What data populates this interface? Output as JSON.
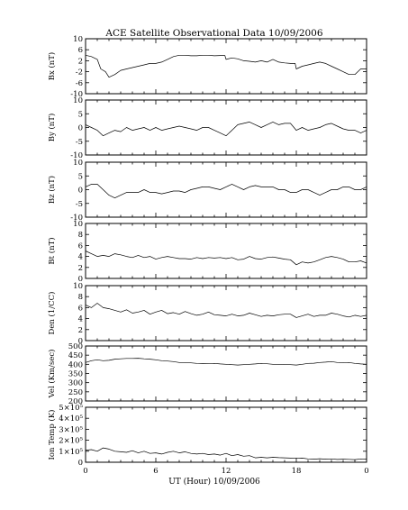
{
  "chart_data": {
    "type": "line",
    "title": "ACE Satellite Observational Data   10/09/2006",
    "xlabel": "UT (Hour)   10/09/2006",
    "x_ticks": [
      "0",
      "6",
      "12",
      "18",
      "0"
    ],
    "xlim": [
      0,
      24
    ],
    "panels": [
      {
        "ylabel": "Bx (nT)",
        "ylim": [
          -10,
          10
        ],
        "y_ticks": [
          "10",
          "6",
          "2",
          "-2",
          "-6",
          "-10"
        ],
        "series": [
          {
            "x": [
              0,
              0.5,
              1,
              1.3,
              1.7,
              2,
              2.5,
              3,
              3.5,
              4,
              4.5,
              5,
              5.5,
              6,
              6.5,
              7,
              7.5,
              8,
              8.5,
              9,
              9.5,
              10,
              10.5,
              11,
              11.5,
              11.9,
              12,
              12.5,
              13,
              13.5,
              14,
              14.5,
              15,
              15.5,
              16,
              16.5,
              17,
              17.5,
              17.9,
              18,
              18.5,
              19,
              19.5,
              20,
              20.5,
              21,
              21.5,
              22,
              22.5,
              23,
              23.5,
              24
            ],
            "y": [
              4,
              3.5,
              2.5,
              -1,
              -2,
              -4,
              -3,
              -1.5,
              -1,
              -0.5,
              0,
              0.5,
              1,
              1,
              1.5,
              2.5,
              3.5,
              4,
              4,
              3.8,
              3.8,
              4,
              4,
              3.8,
              3.9,
              3.9,
              2.5,
              3,
              2.7,
              2,
              1.8,
              1.5,
              2,
              1.5,
              2.5,
              1.5,
              1.2,
              1,
              1,
              -1,
              0,
              0.5,
              1,
              1.5,
              1,
              0,
              -1,
              -2,
              -3,
              -3,
              -1,
              -1
            ]
          }
        ]
      },
      {
        "ylabel": "By (nT)",
        "ylim": [
          -10,
          10
        ],
        "y_ticks": [
          "10",
          "5",
          "0",
          "-5",
          "-10"
        ],
        "series": [
          {
            "x": [
              0,
              0.5,
              1,
              1.5,
              2,
              2.5,
              3,
              3.5,
              4,
              4.5,
              5,
              5.5,
              6,
              6.5,
              7,
              7.5,
              8,
              8.5,
              9,
              9.5,
              10,
              10.5,
              11,
              11.5,
              12,
              12.5,
              13,
              13.5,
              14,
              14.5,
              15,
              15.5,
              16,
              16.5,
              17,
              17.5,
              18,
              18.5,
              19,
              19.5,
              20,
              20.5,
              21,
              21.5,
              22,
              22.5,
              23,
              23.5,
              24
            ],
            "y": [
              1,
              0,
              -1,
              -3,
              -2,
              -1,
              -1.5,
              0,
              -1,
              -0.5,
              0,
              -1,
              0,
              -1,
              -0.5,
              0,
              0.5,
              0,
              -0.5,
              -1,
              0,
              0,
              -1,
              -2,
              -3,
              -1,
              1,
              1.5,
              2,
              1,
              0,
              1,
              2,
              1,
              1.5,
              1.5,
              -1,
              0,
              -1,
              -0.5,
              0,
              1,
              1.5,
              0.5,
              -0.5,
              -1,
              -1,
              -2,
              -1
            ]
          }
        ]
      },
      {
        "ylabel": "Bz (nT)",
        "ylim": [
          -10,
          10
        ],
        "y_ticks": [
          "10",
          "5",
          "0",
          "-5",
          "-10"
        ],
        "series": [
          {
            "x": [
              0,
              0.5,
              1,
              1.5,
              2,
              2.5,
              3,
              3.5,
              4,
              4.5,
              5,
              5.5,
              6,
              6.5,
              7,
              7.5,
              8,
              8.5,
              9,
              9.5,
              10,
              10.5,
              11,
              11.5,
              12,
              12.5,
              13,
              13.5,
              14,
              14.5,
              15,
              15.5,
              16,
              16.5,
              17,
              17.5,
              18,
              18.5,
              19,
              19.5,
              20,
              20.5,
              21,
              21.5,
              22,
              22.5,
              23,
              23.5,
              24
            ],
            "y": [
              1,
              2,
              2,
              0,
              -2,
              -3,
              -2,
              -1,
              -1,
              -1,
              0,
              -1,
              -1,
              -1.5,
              -1,
              -0.5,
              -0.5,
              -1,
              0,
              0.5,
              1,
              1,
              0.5,
              0,
              1,
              2,
              1,
              0,
              1,
              1.5,
              1,
              1,
              1,
              0,
              0,
              -1,
              -1,
              0,
              0,
              -1,
              -2,
              -1,
              0,
              0,
              1,
              1,
              0,
              0,
              1
            ]
          }
        ]
      },
      {
        "ylabel": "Bt (nT)",
        "ylim": [
          0,
          10
        ],
        "y_ticks": [
          "10",
          "8",
          "6",
          "4",
          "2",
          "0"
        ],
        "series": [
          {
            "x": [
              0,
              0.5,
              1,
              1.5,
              2,
              2.5,
              3,
              3.5,
              4,
              4.5,
              5,
              5.5,
              6,
              6.5,
              7,
              7.5,
              8,
              8.5,
              9,
              9.5,
              10,
              10.5,
              11,
              11.5,
              12,
              12.5,
              13,
              13.5,
              14,
              14.5,
              15,
              15.5,
              16,
              16.5,
              17,
              17.5,
              18,
              18.5,
              19,
              19.5,
              20,
              20.5,
              21,
              21.5,
              22,
              22.5,
              23,
              23.5,
              24
            ],
            "y": [
              5,
              4.5,
              4,
              4.2,
              4,
              4.5,
              4.3,
              4,
              3.8,
              4.2,
              3.8,
              4,
              3.5,
              3.8,
              4,
              3.8,
              3.6,
              3.6,
              3.5,
              3.8,
              3.6,
              3.8,
              3.7,
              3.8,
              3.6,
              3.8,
              3.4,
              3.5,
              4,
              3.6,
              3.5,
              3.8,
              3.9,
              3.7,
              3.5,
              3.4,
              2.5,
              3,
              2.8,
              3,
              3.4,
              3.8,
              4,
              3.8,
              3.5,
              3,
              3,
              3.2,
              2.8
            ]
          }
        ]
      },
      {
        "ylabel": "Den (1/CC)",
        "ylim": [
          0,
          10
        ],
        "y_ticks": [
          "10",
          "8",
          "6",
          "4",
          "2",
          "0"
        ],
        "series": [
          {
            "x": [
              0,
              0.5,
              1,
              1.5,
              2,
              2.5,
              3,
              3.5,
              4,
              4.5,
              5,
              5.5,
              6,
              6.5,
              7,
              7.5,
              8,
              8.5,
              9,
              9.5,
              10,
              10.5,
              11,
              11.5,
              12,
              12.5,
              13,
              13.5,
              14,
              14.5,
              15,
              15.5,
              16,
              16.5,
              17,
              17.5,
              18,
              18.5,
              19,
              19.5,
              20,
              20.5,
              21,
              21.5,
              22,
              22.5,
              23,
              23.5,
              24
            ],
            "y": [
              6.5,
              6,
              6.8,
              6,
              5.8,
              5.5,
              5.2,
              5.6,
              5,
              5.2,
              5.5,
              4.8,
              5.2,
              5.5,
              4.9,
              5.1,
              4.8,
              5.3,
              4.9,
              4.6,
              4.8,
              5.2,
              4.7,
              4.6,
              4.5,
              4.8,
              4.5,
              4.6,
              5,
              4.7,
              4.4,
              4.6,
              4.5,
              4.7,
              4.8,
              4.8,
              4.2,
              4.5,
              4.8,
              4.4,
              4.6,
              4.6,
              5,
              4.8,
              4.5,
              4.3,
              4.6,
              4.4,
              4.6
            ]
          }
        ]
      },
      {
        "ylabel": "Vel (Km/sec)",
        "ylim": [
          200,
          500
        ],
        "y_ticks": [
          "500",
          "450",
          "400",
          "350",
          "300",
          "250",
          "200"
        ],
        "series": [
          {
            "x": [
              0,
              0.5,
              1,
              1.5,
              2,
              2.5,
              3,
              3.5,
              4,
              4.5,
              5,
              5.5,
              6,
              6.5,
              7,
              7.5,
              8,
              8.5,
              9,
              9.5,
              10,
              10.5,
              11,
              11.5,
              12,
              12.5,
              13,
              13.5,
              14,
              14.5,
              15,
              15.5,
              16,
              16.5,
              17,
              17.5,
              18,
              18.5,
              19,
              19.5,
              20,
              20.5,
              21,
              21.5,
              22,
              22.5,
              23,
              23.5,
              24
            ],
            "y": [
              410,
              420,
              425,
              420,
              422,
              428,
              430,
              432,
              432,
              433,
              430,
              428,
              425,
              420,
              418,
              415,
              410,
              410,
              408,
              405,
              404,
              403,
              405,
              402,
              400,
              398,
              396,
              398,
              400,
              402,
              405,
              403,
              400,
              400,
              398,
              398,
              396,
              400,
              405,
              406,
              410,
              412,
              415,
              410,
              408,
              410,
              405,
              402,
              400
            ]
          }
        ]
      },
      {
        "ylabel": "Ion Temp (K)",
        "ylim": [
          0,
          500000
        ],
        "y_ticks": [
          "5×10⁵",
          "4×10⁵",
          "3×10⁵",
          "2×10⁵",
          "1×10⁵",
          "0"
        ],
        "series": [
          {
            "x": [
              0,
              0.5,
              1,
              1.5,
              2,
              2.5,
              3,
              3.5,
              4,
              4.5,
              5,
              5.5,
              6,
              6.5,
              7,
              7.5,
              8,
              8.5,
              9,
              9.5,
              10,
              10.5,
              11,
              11.5,
              12,
              12.5,
              13,
              13.5,
              14,
              14.5,
              15,
              15.5,
              16,
              16.5,
              17,
              17.5,
              18,
              18.5,
              19,
              19.5,
              20,
              20.5,
              21,
              21.5,
              22,
              22.5,
              23,
              23.5,
              24
            ],
            "y": [
              110000,
              115000,
              100000,
              130000,
              120000,
              100000,
              95000,
              90000,
              105000,
              85000,
              100000,
              80000,
              85000,
              75000,
              90000,
              100000,
              85000,
              95000,
              80000,
              75000,
              80000,
              70000,
              75000,
              65000,
              80000,
              60000,
              70000,
              55000,
              60000,
              40000,
              45000,
              40000,
              45000,
              42000,
              40000,
              38000,
              35000,
              38000,
              30000,
              28000,
              32000,
              28000,
              30000,
              25000,
              28000,
              26000,
              24000,
              30000,
              28000
            ]
          }
        ]
      }
    ]
  }
}
